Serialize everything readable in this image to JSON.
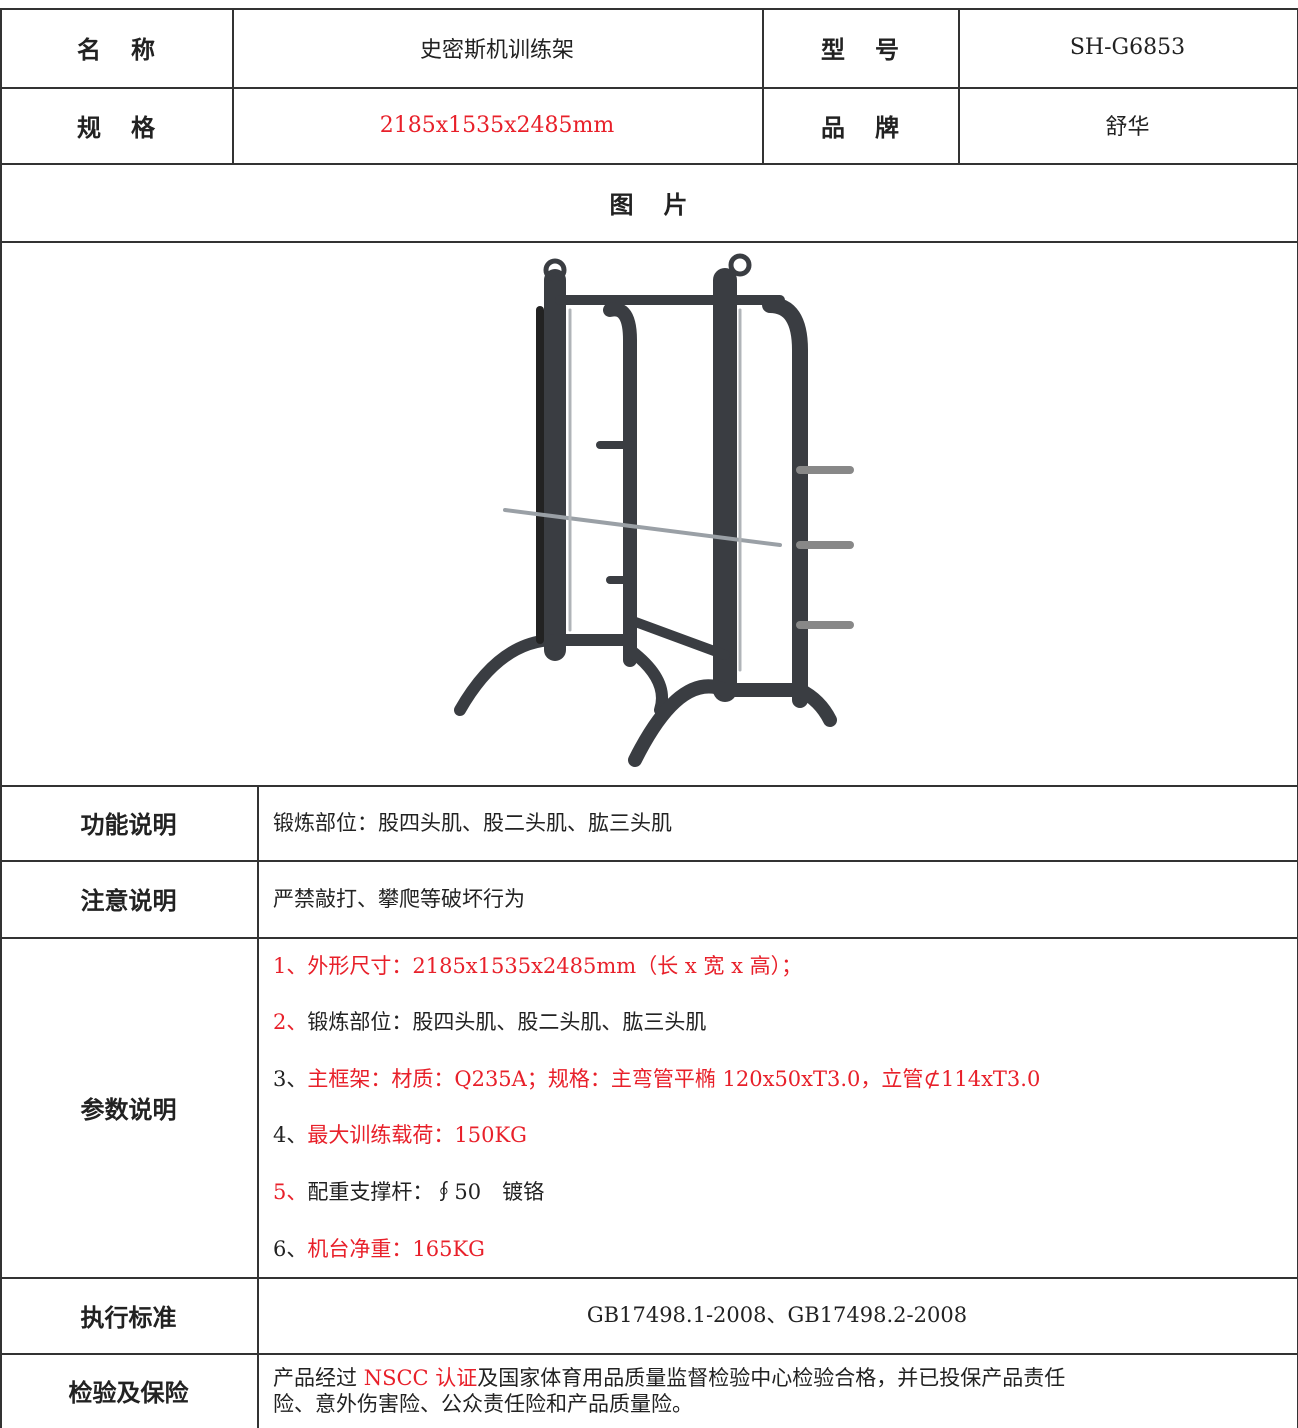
{
  "info": [
    {
      "label": "名称",
      "value": "史密斯机训练架"
    },
    {
      "label": "型号",
      "value": "SH-G6853"
    },
    {
      "label": "规格",
      "value": "2185x1535x2485mm",
      "value_color": "#e8202a"
    },
    {
      "label": "品牌",
      "value": "舒华"
    }
  ],
  "picture": {
    "label": "图片"
  },
  "sections": [
    {
      "label": "功能说明",
      "lines": [
        [
          {
            "text": "锻炼部位：股四头肌、股二头肌、肱三头肌"
          }
        ]
      ]
    },
    {
      "label": "注意说明",
      "lines": [
        [
          {
            "text": "严禁敲打、攀爬等破坏行为"
          }
        ]
      ]
    },
    {
      "label": "参数说明",
      "lines": [
        [
          {
            "text": "1、外形尺寸：2185x1535x2485mm（长 x 宽 x 高）；",
            "color": "#e8202a"
          }
        ],
        [
          {
            "text": "2、",
            "color": "#e8202a"
          },
          {
            "text": "锻炼部位：股四头肌、股二头肌、肱三头肌"
          }
        ],
        [
          {
            "text": "3、"
          },
          {
            "text": "主框架：材质：Q235A；规格：主弯管平椭 120x50xT3.0，立管⊄114xT3.0",
            "color": "#e8202a"
          }
        ],
        [
          {
            "text": "4、"
          },
          {
            "text": "最大训练载荷：150KG",
            "color": "#e8202a"
          }
        ],
        [
          {
            "text": "5、",
            "color": "#e8202a"
          },
          {
            "text": "配重支撑杆：∮50　镀铬"
          }
        ],
        [
          {
            "text": "6、"
          },
          {
            "text": "机台净重：165KG",
            "color": "#e8202a"
          }
        ]
      ]
    },
    {
      "label": "执行标准",
      "align": "center",
      "lines": [
        [
          {
            "text": "GB17498.1-2008、GB17498.2-2008"
          }
        ]
      ]
    },
    {
      "label": "检验及保险",
      "lines": [
        [
          {
            "text": "产品经过 "
          },
          {
            "text": "NSCC 认证",
            "color": "#e8202a"
          },
          {
            "text": "及国家体育用品质量监督检验中心检验合格，并已投保产品责任"
          }
        ],
        [
          {
            "text": "险、意外伤害险、公众责任险和产品质量险。"
          }
        ]
      ]
    }
  ]
}
